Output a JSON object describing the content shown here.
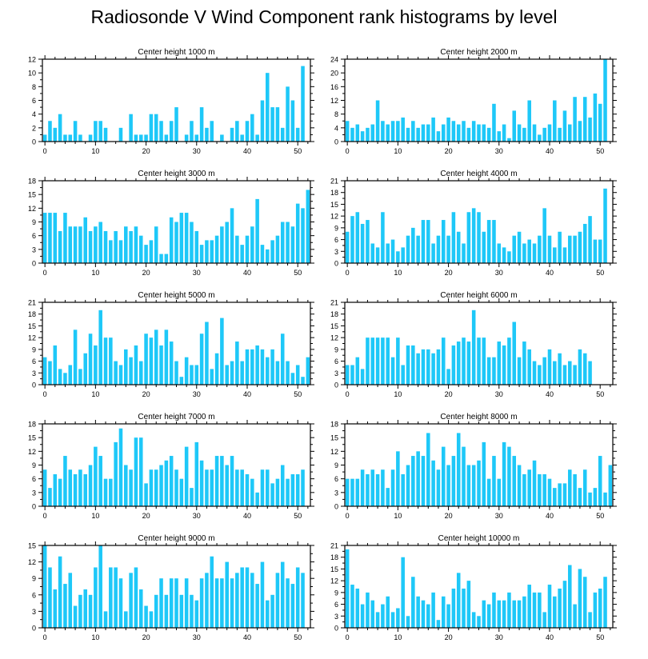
{
  "title": "Radiosonde V Wind Component rank histograms by level",
  "colors": {
    "bar": "#1ec8f8",
    "axis": "#000000"
  },
  "chart_data": [
    {
      "type": "bar",
      "title": "Center height 1000 m",
      "ylim": [
        0,
        12
      ],
      "yticks": [
        0,
        2,
        4,
        6,
        8,
        10,
        12
      ],
      "xticks": [
        0,
        10,
        20,
        30,
        40,
        50
      ],
      "values": [
        1,
        3,
        2,
        4,
        1,
        1,
        3,
        1,
        0,
        1,
        3,
        3,
        2,
        0,
        0,
        2,
        0,
        4,
        1,
        1,
        1,
        4,
        4,
        3,
        1,
        3,
        5,
        0,
        1,
        3,
        1,
        5,
        2,
        3,
        0,
        1,
        0,
        2,
        3,
        1,
        3,
        4,
        1,
        6,
        10,
        5,
        5,
        2,
        8,
        6,
        2,
        11
      ]
    },
    {
      "type": "bar",
      "title": "Center height 2000 m",
      "ylim": [
        0,
        24
      ],
      "yticks": [
        0,
        4,
        8,
        12,
        16,
        20,
        24
      ],
      "xticks": [
        0,
        10,
        20,
        30,
        40,
        50
      ],
      "values": [
        6,
        4,
        5,
        3,
        4,
        5,
        12,
        6,
        5,
        6,
        6,
        7,
        4,
        6,
        4,
        5,
        5,
        7,
        3,
        5,
        7,
        6,
        5,
        6,
        4,
        6,
        5,
        5,
        4,
        11,
        3,
        5,
        1,
        9,
        5,
        4,
        12,
        5,
        2,
        4,
        5,
        12,
        4,
        9,
        5,
        13,
        6,
        13,
        7,
        14,
        11,
        24
      ]
    },
    {
      "type": "bar",
      "title": "Center height 3000 m",
      "ylim": [
        0,
        18
      ],
      "yticks": [
        0,
        3,
        6,
        9,
        12,
        15,
        18
      ],
      "xticks": [
        0,
        10,
        20,
        30,
        40,
        50
      ],
      "values": [
        11,
        11,
        11,
        7,
        11,
        8,
        8,
        8,
        10,
        7,
        8,
        9,
        7,
        5,
        7,
        5,
        8,
        7,
        8,
        6,
        4,
        5,
        8,
        2,
        2,
        10,
        9,
        11,
        11,
        9,
        7,
        4,
        5,
        5,
        6,
        8,
        9,
        12,
        6,
        4,
        6,
        8,
        14,
        4,
        3,
        5,
        6,
        9,
        9,
        8,
        13,
        12,
        16
      ]
    },
    {
      "type": "bar",
      "title": "Center height 4000 m",
      "ylim": [
        0,
        21
      ],
      "yticks": [
        0,
        3,
        6,
        9,
        12,
        15,
        18,
        21
      ],
      "xticks": [
        0,
        10,
        20,
        30,
        40,
        50
      ],
      "values": [
        8,
        12,
        13,
        10,
        11,
        5,
        4,
        13,
        5,
        6,
        3,
        4,
        7,
        9,
        7,
        11,
        11,
        5,
        7,
        11,
        7,
        13,
        8,
        5,
        13,
        14,
        13,
        8,
        11,
        11,
        5,
        4,
        3,
        7,
        8,
        5,
        6,
        5,
        7,
        14,
        7,
        4,
        8,
        4,
        7,
        7,
        8,
        10,
        12,
        6,
        6,
        19
      ]
    },
    {
      "type": "bar",
      "title": "Center height 5000 m",
      "ylim": [
        0,
        21
      ],
      "yticks": [
        0,
        3,
        6,
        9,
        12,
        15,
        18,
        21
      ],
      "xticks": [
        0,
        10,
        20,
        30,
        40,
        50
      ],
      "values": [
        7,
        6,
        10,
        4,
        3,
        5,
        14,
        4,
        8,
        13,
        10,
        19,
        12,
        12,
        6,
        5,
        9,
        7,
        10,
        6,
        13,
        12,
        14,
        10,
        14,
        11,
        6,
        2,
        7,
        5,
        5,
        13,
        16,
        4,
        8,
        17,
        5,
        6,
        11,
        6,
        9,
        9,
        10,
        9,
        7,
        9,
        6,
        13,
        6,
        3,
        5,
        2,
        7
      ]
    },
    {
      "type": "bar",
      "title": "Center height 6000 m",
      "ylim": [
        0,
        21
      ],
      "yticks": [
        0,
        3,
        6,
        9,
        12,
        15,
        18,
        21
      ],
      "xticks": [
        0,
        10,
        20,
        30,
        40,
        50
      ],
      "values": [
        5,
        5,
        7,
        4,
        12,
        12,
        12,
        12,
        12,
        7,
        12,
        5,
        10,
        10,
        8,
        9,
        9,
        8,
        9,
        12,
        4,
        10,
        11,
        12,
        11,
        19,
        12,
        12,
        7,
        7,
        11,
        10,
        12,
        16,
        7,
        11,
        9,
        6,
        5,
        7,
        9,
        6,
        8,
        5,
        6,
        5,
        9,
        8,
        6
      ]
    },
    {
      "type": "bar",
      "title": "Center height 7000 m",
      "ylim": [
        0,
        18
      ],
      "yticks": [
        0,
        3,
        6,
        9,
        12,
        15,
        18
      ],
      "xticks": [
        0,
        10,
        20,
        30,
        40,
        50
      ],
      "values": [
        8,
        4,
        7,
        6,
        11,
        8,
        7,
        8,
        7,
        9,
        13,
        11,
        6,
        6,
        14,
        17,
        9,
        8,
        15,
        15,
        5,
        8,
        8,
        9,
        10,
        11,
        8,
        6,
        13,
        4,
        14,
        10,
        8,
        8,
        11,
        11,
        9,
        11,
        8,
        8,
        7,
        6,
        3,
        8,
        8,
        5,
        6,
        9,
        6,
        7,
        7,
        8
      ]
    },
    {
      "type": "bar",
      "title": "Center height 8000 m",
      "ylim": [
        0,
        18
      ],
      "yticks": [
        0,
        3,
        6,
        9,
        12,
        15,
        18
      ],
      "xticks": [
        0,
        10,
        20,
        30,
        40,
        50
      ],
      "values": [
        6,
        6,
        6,
        8,
        7,
        8,
        7,
        8,
        4,
        8,
        12,
        7,
        9,
        11,
        12,
        11,
        16,
        10,
        8,
        13,
        9,
        11,
        16,
        13,
        9,
        9,
        10,
        14,
        6,
        11,
        6,
        14,
        13,
        11,
        9,
        7,
        8,
        10,
        7,
        7,
        6,
        4,
        5,
        5,
        8,
        7,
        4,
        8,
        3,
        4,
        11,
        3,
        9
      ]
    },
    {
      "type": "bar",
      "title": "Center height 9000 m",
      "ylim": [
        0,
        15
      ],
      "yticks": [
        0,
        3,
        6,
        9,
        12,
        15
      ],
      "xticks": [
        0,
        10,
        20,
        30,
        40,
        50
      ],
      "values": [
        15,
        11,
        7,
        13,
        8,
        10,
        4,
        6,
        7,
        6,
        11,
        15,
        3,
        11,
        11,
        9,
        3,
        10,
        11,
        7,
        4,
        3,
        6,
        9,
        6,
        9,
        9,
        6,
        9,
        6,
        5,
        9,
        10,
        13,
        9,
        9,
        12,
        9,
        10,
        11,
        11,
        10,
        8,
        12,
        5,
        6,
        10,
        12,
        9,
        8,
        11,
        10
      ]
    },
    {
      "type": "bar",
      "title": "Center height 10000 m",
      "ylim": [
        0,
        21
      ],
      "yticks": [
        0,
        3,
        6,
        9,
        12,
        15,
        18,
        21
      ],
      "xticks": [
        0,
        10,
        20,
        30,
        40,
        50
      ],
      "values": [
        20,
        11,
        10,
        6,
        9,
        7,
        4,
        6,
        8,
        4,
        5,
        18,
        3,
        13,
        8,
        7,
        6,
        9,
        2,
        8,
        6,
        10,
        14,
        10,
        12,
        4,
        3,
        7,
        6,
        9,
        7,
        7,
        9,
        7,
        7,
        8,
        11,
        9,
        9,
        4,
        11,
        8,
        10,
        12,
        16,
        6,
        15,
        13,
        4,
        9,
        10,
        13
      ]
    }
  ]
}
